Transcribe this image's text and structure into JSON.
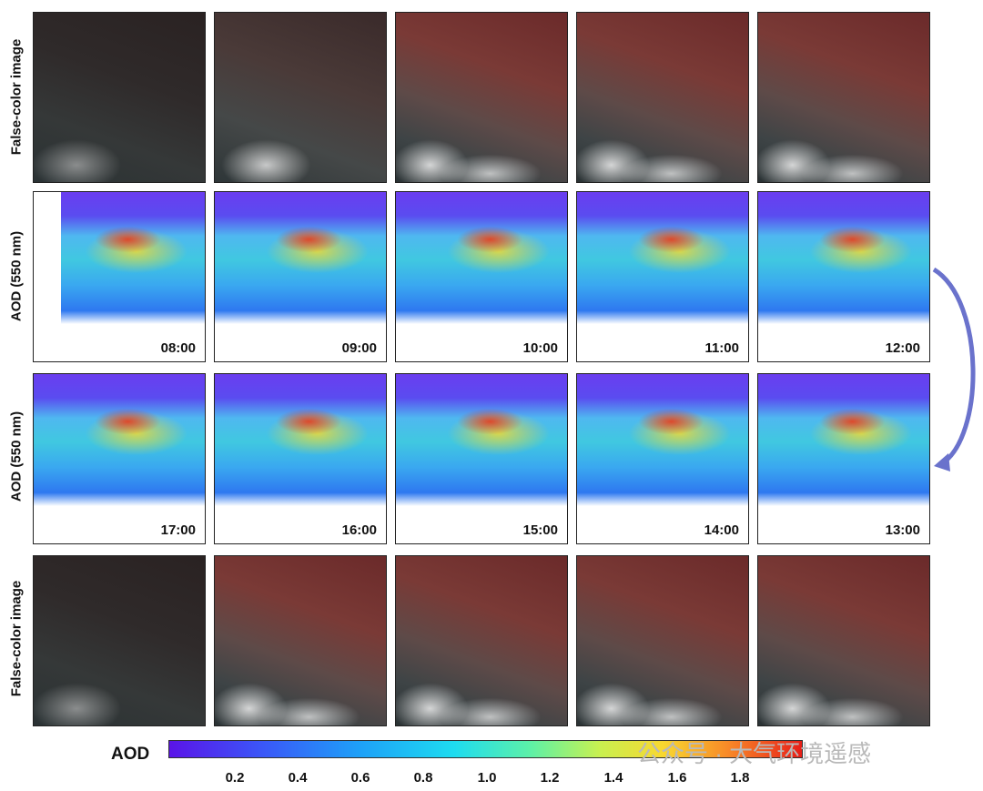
{
  "row_labels": [
    "False-color image",
    "AOD (550 nm)",
    "AOD (550 nm)",
    "False-color image"
  ],
  "aod_row1_times": [
    "08:00",
    "09:00",
    "10:00",
    "11:00",
    "12:00"
  ],
  "aod_row2_times": [
    "17:00",
    "16:00",
    "15:00",
    "14:00",
    "13:00"
  ],
  "colorbar": {
    "label": "AOD",
    "ticks": [
      "0.2",
      "0.4",
      "0.6",
      "0.8",
      "1.0",
      "1.2",
      "1.4",
      "1.6",
      "1.8"
    ]
  },
  "watermark": "公众号 · 大气环境遥感"
}
